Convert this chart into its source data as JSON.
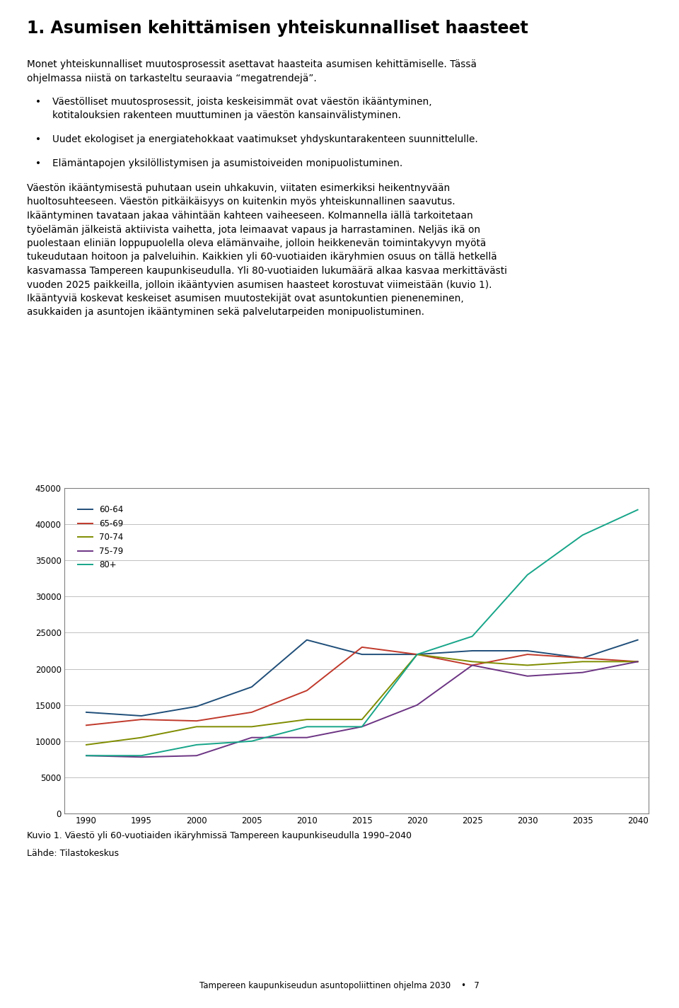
{
  "title": "1. Asumisen kehittämisen yhteiskunnalliset haasteet",
  "para1": "Monet yhteiskunnalliset muutosprosessit asettavat haasteita asumisen kehittämiselle. Tässä ohjelmassa niistä on tarkasteltu seuraavia “megatrendejä”.",
  "bullet1_line1": "Väestölliset muutosprosessit, joista keskeisimmät ovat väestön ikääntyminen,",
  "bullet1_line2": "kotitalouksien rakenteen muuttuminen ja väestön kansainvälistyminen.",
  "bullet2": "Uudet ekologiset ja energiatehokkaat vaatimukset yhdyskuntarakenteen suunnittelulle.",
  "bullet3": "Elämäntapojen yksilöllistymisen ja asumistoiveiden monipuolistuminen.",
  "body_lines": [
    "Väestön ikääntymisestä puhutaan usein uhkakuvin, viitaten esimerkiksi heikentnyvään",
    "huoltosuhteeseen. Väestön pitkäikäisyys on kuitenkin myös yhteiskunnallinen saavutus.",
    "Ikääntyminen tavataan jakaa vähintään kahteen vaiheeseen. Kolmannella iällä tarkoitetaan",
    "työelämän jälkeistä aktiivista vaihetta, jota leimaavat vapaus ja harrastaminen. Neljäs ikä on",
    "puolestaan eliniän loppupuolella oleva elämänvaihe, jolloin heikkenevän toimintakyvyn myötä",
    "tukeudutaan hoitoon ja palveluihin. Kaikkien yli 60-vuotiaiden ikäryhmien osuus on tällä hetkellä",
    "kasvamassa Tampereen kaupunkiseudulla. Yli 80-vuotiaiden lukumäärä alkaa kasvaa merkittävästi",
    "vuoden 2025 paikkeilla, jolloin ikääntyvien asumisen haasteet korostuvat viimeistään (kuvio 1).",
    "Ikääntyviä koskevat keskeiset asumisen muutostekijät ovat asuntokuntien pieneneminen,",
    "asukkaiden ja asuntojen ikääntyminen sekä palvelutarpeiden monipuolistuminen."
  ],
  "chart": {
    "years": [
      1990,
      1995,
      2000,
      2005,
      2010,
      2015,
      2020,
      2025,
      2030,
      2035,
      2040
    ],
    "series": {
      "60-64": {
        "color": "#1f4e79",
        "values": [
          14000,
          13500,
          14800,
          17500,
          24000,
          22000,
          22000,
          22500,
          22500,
          21500,
          24000
        ]
      },
      "65-69": {
        "color": "#c0392b",
        "values": [
          12200,
          13000,
          12800,
          14000,
          17000,
          23000,
          22000,
          20500,
          22000,
          21500,
          21000
        ]
      },
      "70-74": {
        "color": "#7f8c00",
        "values": [
          9500,
          10500,
          12000,
          12000,
          13000,
          13000,
          22000,
          21000,
          20500,
          21000,
          21000
        ]
      },
      "75-79": {
        "color": "#6c3483",
        "values": [
          8000,
          7800,
          8000,
          10500,
          10500,
          12000,
          15000,
          20500,
          19000,
          19500,
          21000
        ]
      },
      "80+": {
        "color": "#17a589",
        "values": [
          8000,
          8000,
          9500,
          10000,
          12000,
          12000,
          22000,
          24500,
          33000,
          38500,
          42000
        ]
      }
    },
    "ylim": [
      0,
      45000
    ],
    "yticks": [
      0,
      5000,
      10000,
      15000,
      20000,
      25000,
      30000,
      35000,
      40000,
      45000
    ],
    "grid_color": "#c0c0c0",
    "border_color": "#808080"
  },
  "caption": "Kuvio 1. Väestö yli 60-vuotiaiden ikäryhmissä Tampereen kaupunkiseudulla 1990–2040",
  "source": "Lähde: Tilastokeskus",
  "footer": "Tampereen kaupunkiseudun asuntopoliittinen ohjelma 2030",
  "footer_page": "7",
  "footer_bullet": "•",
  "background_color": "#ffffff",
  "text_color": "#000000"
}
